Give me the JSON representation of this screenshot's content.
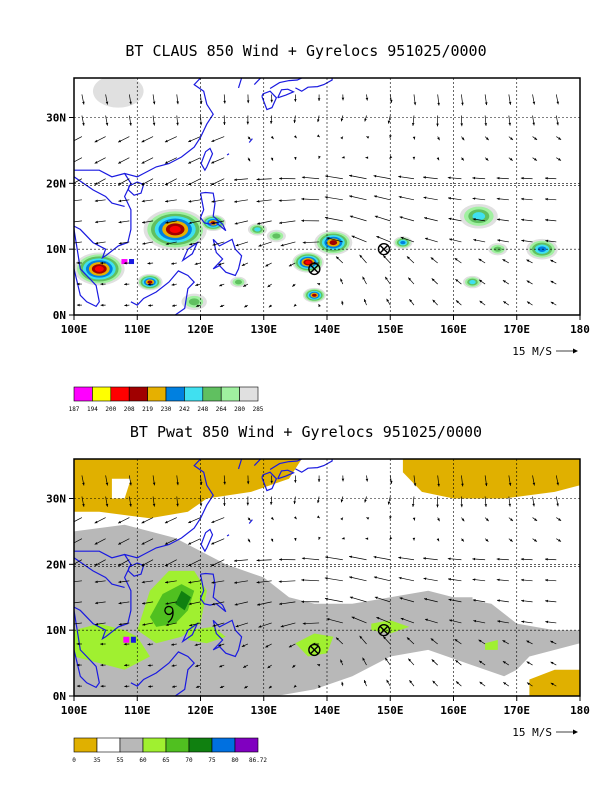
{
  "chart_data": [
    {
      "type": "heatmap",
      "title": "BT CLAUS 850 Wind + Gyrelocs 951025/0000",
      "x_ticks": [
        "100E",
        "110E",
        "120E",
        "130E",
        "140E",
        "150E",
        "160E",
        "170E",
        "180"
      ],
      "y_ticks": [
        "0N",
        "10N",
        "20N",
        "30N"
      ],
      "xlim": [
        100,
        180
      ],
      "ylim": [
        0,
        36
      ],
      "grid": true,
      "vector_scale_label": "15 M/S",
      "colorbar": {
        "labels": [
          "187",
          "194",
          "200",
          "208",
          "219",
          "230",
          "242",
          "248",
          "264",
          "280",
          "285"
        ],
        "colors": [
          "#ff00ff",
          "#ffff00",
          "#ff0000",
          "#a00000",
          "#e6b000",
          "#0080e0",
          "#40e0f0",
          "#60c060",
          "#a0f0a0",
          "#e0e0e0"
        ]
      },
      "gyre_locations": [
        {
          "lon": 138,
          "lat": 7
        },
        {
          "lon": 149,
          "lat": 10
        }
      ],
      "cloud_clusters": [
        {
          "lon": 116,
          "lat": 13,
          "radius": 5,
          "value": 200
        },
        {
          "lon": 122,
          "lat": 14,
          "radius": 2,
          "value": 208
        },
        {
          "lon": 104,
          "lat": 7,
          "radius": 4,
          "value": 200
        },
        {
          "lon": 112,
          "lat": 5,
          "radius": 2,
          "value": 208
        },
        {
          "lon": 137,
          "lat": 8,
          "radius": 2.5,
          "value": 200
        },
        {
          "lon": 141,
          "lat": 11,
          "radius": 3,
          "value": 208
        },
        {
          "lon": 138,
          "lat": 3,
          "radius": 1.8,
          "value": 208
        },
        {
          "lon": 129,
          "lat": 13,
          "radius": 1.5,
          "value": 242
        },
        {
          "lon": 152,
          "lat": 11,
          "radius": 1.5,
          "value": 230
        },
        {
          "lon": 164,
          "lat": 15,
          "radius": 3,
          "value": 242
        },
        {
          "lon": 167,
          "lat": 10,
          "radius": 1.5,
          "value": 248
        },
        {
          "lon": 174,
          "lat": 10,
          "radius": 2.5,
          "value": 230
        },
        {
          "lon": 163,
          "lat": 5,
          "radius": 1.5,
          "value": 242
        },
        {
          "lon": 126,
          "lat": 5,
          "radius": 1.3,
          "value": 248
        },
        {
          "lon": 132,
          "lat": 12,
          "radius": 1.5,
          "value": 248
        },
        {
          "lon": 107,
          "lat": 34,
          "radius": 4,
          "value": 280
        },
        {
          "lon": 119,
          "lat": 2,
          "radius": 2,
          "value": 248
        }
      ]
    },
    {
      "type": "heatmap",
      "title": "BT Pwat 850 Wind + Gyrelocs 951025/0000",
      "x_ticks": [
        "100E",
        "110E",
        "120E",
        "130E",
        "140E",
        "150E",
        "160E",
        "170E",
        "180"
      ],
      "y_ticks": [
        "0N",
        "10N",
        "20N",
        "30N"
      ],
      "xlim": [
        100,
        180
      ],
      "ylim": [
        0,
        36
      ],
      "grid": true,
      "vector_scale_label": "15 M/S",
      "colorbar": {
        "labels": [
          "0",
          "35",
          "55",
          "60",
          "65",
          "70",
          "75",
          "80",
          "86.72"
        ],
        "colors": [
          "#e0b000",
          "#ffffff",
          "#b8b8b8",
          "#a0f030",
          "#50c020",
          "#108010",
          "#0070e0",
          "#8000c0"
        ]
      },
      "gyre_locations": [
        {
          "lon": 138,
          "lat": 7
        },
        {
          "lon": 149,
          "lat": 10
        }
      ],
      "typhoon_symbol_location": {
        "lon": 115,
        "lat": 13
      }
    }
  ]
}
